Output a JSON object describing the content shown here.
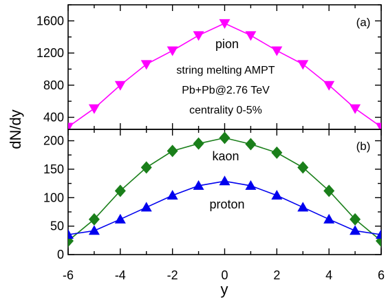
{
  "chart_data": [
    {
      "panel_tag": "(a)",
      "type": "line",
      "ylabel": "dN/dy",
      "xlim": [
        -6,
        6
      ],
      "ylim": [
        250,
        1800
      ],
      "x_ticks": [
        -6,
        -4,
        -2,
        0,
        2,
        4,
        6
      ],
      "y_ticks": [
        400,
        800,
        1200,
        1600
      ],
      "annotations": [
        "string melting AMPT",
        "Pb+Pb@2.76 TeV",
        "centrality 0-5%"
      ],
      "series": [
        {
          "name": "pion",
          "color": "#ff00ff",
          "marker": "triangle-down",
          "x": [
            -6,
            -5,
            -4,
            -3,
            -2,
            -1,
            0,
            1,
            2,
            3,
            4,
            5,
            6
          ],
          "y": [
            280,
            510,
            800,
            1060,
            1230,
            1420,
            1570,
            1420,
            1230,
            1060,
            800,
            510,
            280
          ]
        }
      ]
    },
    {
      "panel_tag": "(b)",
      "type": "line",
      "xlabel": "y",
      "xlim": [
        -6,
        6
      ],
      "ylim": [
        0,
        220
      ],
      "x_ticks": [
        -6,
        -4,
        -2,
        0,
        2,
        4,
        6
      ],
      "y_ticks": [
        0,
        50,
        100,
        150,
        200
      ],
      "series": [
        {
          "name": "kaon",
          "color": "#1a7f1a",
          "marker": "diamond",
          "x": [
            -6,
            -5,
            -4,
            -3,
            -2,
            -1,
            0,
            1,
            2,
            3,
            4,
            5,
            6
          ],
          "y": [
            24,
            62,
            112,
            153,
            182,
            195,
            205,
            194,
            179,
            153,
            112,
            62,
            24
          ]
        },
        {
          "name": "proton",
          "color": "#0000ee",
          "marker": "triangle-up",
          "x": [
            -6,
            -5,
            -4,
            -3,
            -2,
            -1,
            0,
            1,
            2,
            3,
            4,
            5,
            6
          ],
          "y": [
            35,
            42,
            62,
            83,
            104,
            121,
            129,
            121,
            104,
            83,
            62,
            42,
            35
          ]
        }
      ]
    }
  ]
}
